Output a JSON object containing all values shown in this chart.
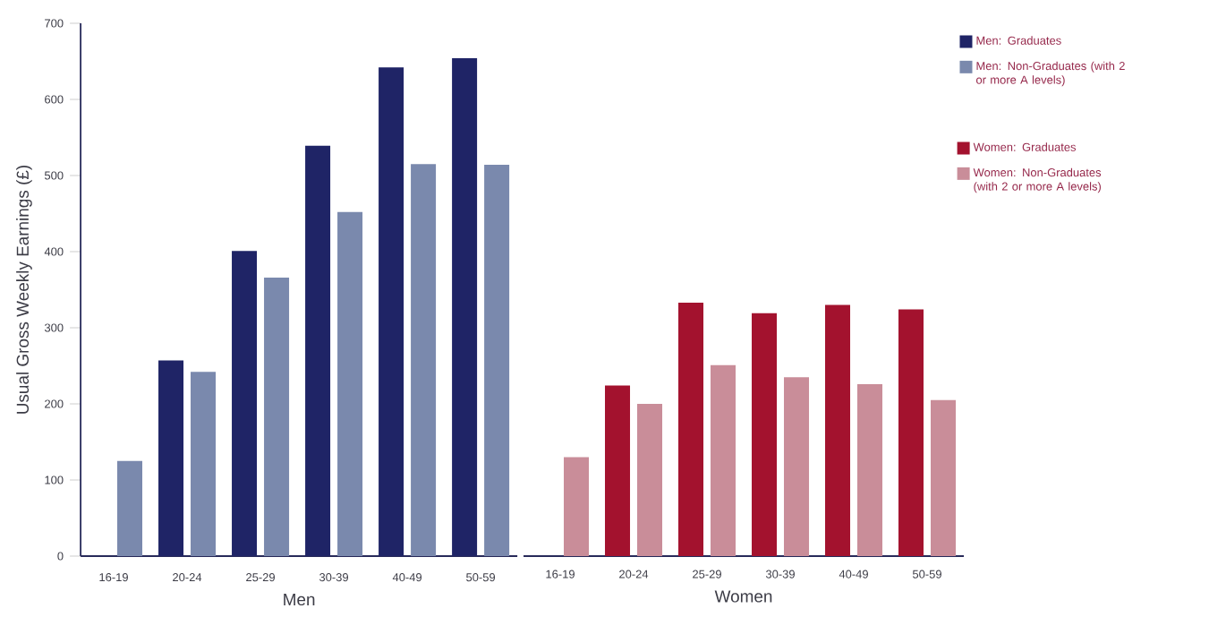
{
  "chart_data": [
    {
      "type": "bar",
      "categories": [
        "16-19",
        "20-24",
        "25-29",
        "30-39",
        "40-49",
        "50-59"
      ],
      "xlabel": "Men",
      "ylabel": "Usual Gross Weekly Earnings (£)",
      "ylim": [
        0,
        700
      ],
      "yticks": [
        0,
        100,
        200,
        300,
        400,
        500,
        600,
        700
      ],
      "legend": "right",
      "series": [
        {
          "name": "Men: Graduates",
          "color": "#1f2466",
          "values": [
            null,
            257,
            401,
            539,
            642,
            654
          ]
        },
        {
          "name": "Men: Non-Graduates (with 2 or more A levels)",
          "color": "#7a89ad",
          "values": [
            125,
            242,
            366,
            452,
            515,
            514
          ]
        }
      ]
    },
    {
      "type": "bar",
      "categories": [
        "16-19",
        "20-24",
        "25-29",
        "30-39",
        "40-49",
        "50-59"
      ],
      "xlabel": "Women",
      "ylim": [
        0,
        700
      ],
      "yticks": [
        0,
        100,
        200,
        300,
        400,
        500,
        600,
        700
      ],
      "tick_labels": "x",
      "legend": "right",
      "series": [
        {
          "name": "Women: Graduates",
          "color": "#a3122e",
          "values": [
            null,
            224,
            333,
            319,
            330,
            324
          ]
        },
        {
          "name": "Women: Non-Graduates (with 2 or more A levels)",
          "color": "#c98d99",
          "values": [
            130,
            200,
            251,
            235,
            226,
            205
          ]
        }
      ]
    }
  ]
}
